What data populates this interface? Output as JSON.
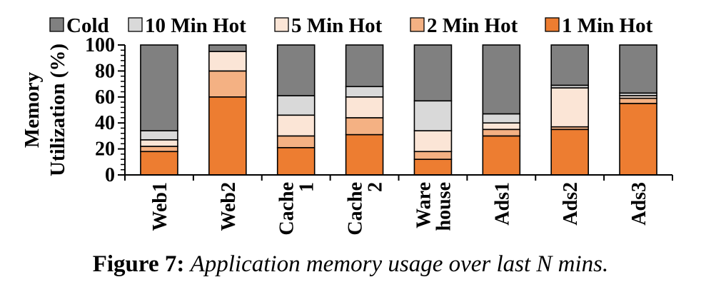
{
  "chart_data": {
    "type": "bar",
    "stacked": true,
    "title": "",
    "ylabel": [
      "Memory",
      "Utilization (%)"
    ],
    "xlabel": "",
    "ylim": [
      0,
      100
    ],
    "yticks": [
      "0",
      "20",
      "40",
      "60",
      "80",
      "100"
    ],
    "grid": false,
    "legend_position": "top",
    "categories": [
      [
        "Web1"
      ],
      [
        "Web2"
      ],
      [
        "Cache",
        "1"
      ],
      [
        "Cache",
        "2"
      ],
      [
        "Ware",
        "house"
      ],
      [
        "Ads1"
      ],
      [
        "Ads2"
      ],
      [
        "Ads3"
      ]
    ],
    "series": [
      {
        "name": "1 Min Hot",
        "color": "#ed7d31",
        "values": [
          18,
          60,
          21,
          31,
          12,
          30,
          35,
          55
        ]
      },
      {
        "name": "2 Min Hot",
        "color": "#f4b183",
        "values": [
          4,
          20,
          9,
          13,
          6,
          5,
          2,
          4
        ]
      },
      {
        "name": "5 Min Hot",
        "color": "#fbe5d6",
        "values": [
          5,
          15,
          16,
          16,
          16,
          5,
          30,
          2
        ]
      },
      {
        "name": "10 Min Hot",
        "color": "#d9d9d9",
        "values": [
          7,
          0,
          15,
          8,
          23,
          7,
          2,
          2
        ]
      },
      {
        "name": "Cold",
        "color": "#808080",
        "values": [
          66,
          5,
          39,
          32,
          43,
          53,
          31,
          37
        ]
      }
    ],
    "legend_order": [
      "Cold",
      "10 Min Hot",
      "5 Min Hot",
      "2 Min Hot",
      "1 Min Hot"
    ]
  },
  "caption": {
    "label": "Figure 7:",
    "text": "Application memory usage over last N mins."
  }
}
